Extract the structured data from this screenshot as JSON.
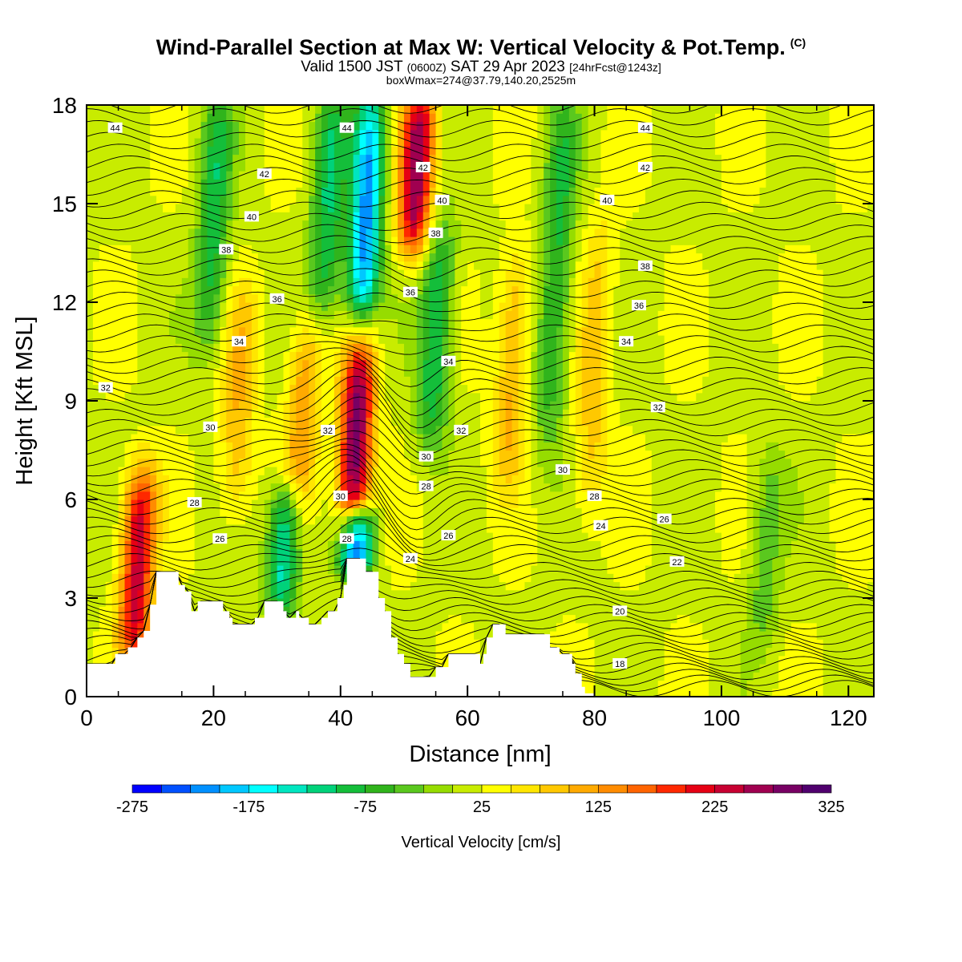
{
  "header": {
    "title": "Wind-Parallel Section at Max W: Vertical Velocity & Pot.Temp.",
    "title_mark": "(C)",
    "subtitle_prefix": "Valid 1500 JST",
    "subtitle_utc": "(0600Z)",
    "subtitle_date": "SAT 29 Apr 2023",
    "subtitle_fcst": "[24hrFcst@1243z]",
    "subtitle2": "boxWmax=274@37.79,140.20,2525m"
  },
  "chart_data": {
    "type": "heatmap",
    "xlabel": "Distance [nm]",
    "ylabel": "Height [Kft MSL]",
    "xlim": [
      0,
      124
    ],
    "ylim": [
      0,
      18
    ],
    "x_ticks": [
      0,
      20,
      40,
      60,
      80,
      100,
      120
    ],
    "y_ticks": [
      0,
      3,
      6,
      9,
      12,
      15,
      18
    ],
    "colorbar": {
      "label": "Vertical Velocity [cm/s]",
      "levels": [
        -275,
        -250,
        -225,
        -200,
        -175,
        -150,
        -125,
        -100,
        -75,
        -50,
        -25,
        0,
        25,
        50,
        75,
        100,
        125,
        150,
        175,
        200,
        225,
        250,
        275,
        300,
        325
      ],
      "tick_labels": [
        "-275",
        "-175",
        "-75",
        "25",
        "125",
        "225",
        "325"
      ],
      "colors": [
        "#0000ff",
        "#0050ff",
        "#0090ff",
        "#00c8ff",
        "#00ffff",
        "#00e6c0",
        "#00d27a",
        "#14be3a",
        "#30b41c",
        "#5ac81e",
        "#96dc00",
        "#c8ec00",
        "#ffff00",
        "#ffe600",
        "#ffc800",
        "#ffaa00",
        "#ff8c00",
        "#ff6400",
        "#ff2800",
        "#e60014",
        "#c80032",
        "#a00050",
        "#780064",
        "#50006e"
      ]
    },
    "updrafts": [
      {
        "x": 8,
        "base": 1.5,
        "top": 6.5,
        "w": 220
      },
      {
        "x": 42.5,
        "base": 5.5,
        "top": 11,
        "w": 274
      },
      {
        "x": 52,
        "base": 14,
        "top": 18,
        "w": 250
      },
      {
        "x": 34,
        "base": 6,
        "top": 11,
        "w": 100
      },
      {
        "x": 67,
        "base": 7,
        "top": 13,
        "w": 90
      },
      {
        "x": 24,
        "base": 6,
        "top": 12,
        "w": 80
      },
      {
        "x": 80,
        "base": 6,
        "top": 14,
        "w": 70
      }
    ],
    "downdrafts": [
      {
        "x": 44,
        "base": 11,
        "top": 18,
        "w": -230
      },
      {
        "x": 42.5,
        "base": 4.2,
        "top": 5.2,
        "w": -270
      },
      {
        "x": 31,
        "base": 3,
        "top": 6,
        "w": -160
      },
      {
        "x": 38,
        "base": 12,
        "top": 18,
        "w": -120
      },
      {
        "x": 55,
        "base": 8,
        "top": 14,
        "w": -120
      },
      {
        "x": 20,
        "base": 11,
        "top": 18,
        "w": -110
      },
      {
        "x": 74,
        "base": 8,
        "top": 18,
        "w": -100
      },
      {
        "x": 107,
        "base": 2,
        "top": 7,
        "w": -60
      }
    ],
    "terrain": [
      [
        0,
        1
      ],
      [
        4.5,
        1
      ],
      [
        4.5,
        1.3
      ],
      [
        6.5,
        1.3
      ],
      [
        6.5,
        1.5
      ],
      [
        8,
        1.5
      ],
      [
        8,
        1.8
      ],
      [
        9,
        1.8
      ],
      [
        9,
        2
      ],
      [
        10,
        2
      ],
      [
        10,
        2.8
      ],
      [
        11,
        2.8
      ],
      [
        11,
        3.8
      ],
      [
        14.5,
        3.8
      ],
      [
        14.5,
        3.4
      ],
      [
        15.5,
        3.4
      ],
      [
        15.5,
        3.2
      ],
      [
        16.5,
        3.2
      ],
      [
        16.5,
        2.6
      ],
      [
        17.5,
        2.6
      ],
      [
        17.5,
        2.9
      ],
      [
        21.5,
        2.9
      ],
      [
        21.5,
        2.6
      ],
      [
        22.5,
        2.6
      ],
      [
        22.5,
        2.4
      ],
      [
        23,
        2.4
      ],
      [
        23,
        2.2
      ],
      [
        26.5,
        2.2
      ],
      [
        26.5,
        2.4
      ],
      [
        28,
        2.4
      ],
      [
        28,
        2.9
      ],
      [
        31,
        2.9
      ],
      [
        31,
        2.6
      ],
      [
        31.5,
        2.6
      ],
      [
        31.5,
        2.4
      ],
      [
        33,
        2.4
      ],
      [
        33,
        2.6
      ],
      [
        33.5,
        2.6
      ],
      [
        33.5,
        2.4
      ],
      [
        35,
        2.4
      ],
      [
        35,
        2.2
      ],
      [
        37,
        2.2
      ],
      [
        37,
        2.4
      ],
      [
        38,
        2.4
      ],
      [
        38,
        2.6
      ],
      [
        39.5,
        2.6
      ],
      [
        39.5,
        3
      ],
      [
        40.5,
        3
      ],
      [
        40.5,
        3.4
      ],
      [
        41,
        3.4
      ],
      [
        41,
        4.2
      ],
      [
        44,
        4.2
      ],
      [
        44,
        3.8
      ],
      [
        46,
        3.8
      ],
      [
        46,
        3
      ],
      [
        47,
        3
      ],
      [
        47,
        2.6
      ],
      [
        48,
        2.6
      ],
      [
        48,
        1.8
      ],
      [
        49,
        1.8
      ],
      [
        49,
        1.3
      ],
      [
        50,
        1.3
      ],
      [
        50,
        1
      ],
      [
        51,
        1
      ],
      [
        51,
        0.6
      ],
      [
        55,
        0.6
      ],
      [
        55,
        0.9
      ],
      [
        57,
        0.9
      ],
      [
        57,
        1.3
      ],
      [
        62,
        1.3
      ],
      [
        62,
        1
      ],
      [
        62.5,
        1
      ],
      [
        62.5,
        1.3
      ],
      [
        63,
        1.3
      ],
      [
        63,
        1.8
      ],
      [
        64,
        1.8
      ],
      [
        64,
        2.2
      ],
      [
        66,
        2.2
      ],
      [
        66,
        1.9
      ],
      [
        73,
        1.9
      ],
      [
        73,
        1.5
      ],
      [
        74.5,
        1.5
      ],
      [
        74.5,
        1.3
      ],
      [
        76.5,
        1.3
      ],
      [
        76.5,
        1
      ],
      [
        77,
        1
      ],
      [
        77,
        0.7
      ],
      [
        78,
        0.7
      ],
      [
        78,
        0.3
      ],
      [
        78.5,
        0.3
      ],
      [
        78.5,
        0.1
      ],
      [
        80,
        0.1
      ],
      [
        80,
        0
      ]
    ],
    "isentropes": {
      "units": "K (potential temperature, label = theta - 273)",
      "labels": [
        {
          "text": "44",
          "x": 4.5,
          "y": 17.3
        },
        {
          "text": "44",
          "x": 41,
          "y": 17.3
        },
        {
          "text": "44",
          "x": 88,
          "y": 17.3
        },
        {
          "text": "42",
          "x": 28,
          "y": 15.9
        },
        {
          "text": "42",
          "x": 53,
          "y": 16.1
        },
        {
          "text": "42",
          "x": 88,
          "y": 16.1
        },
        {
          "text": "40",
          "x": 26,
          "y": 14.6
        },
        {
          "text": "40",
          "x": 56,
          "y": 15.1
        },
        {
          "text": "40",
          "x": 82,
          "y": 15.1
        },
        {
          "text": "38",
          "x": 22,
          "y": 13.6
        },
        {
          "text": "38",
          "x": 55,
          "y": 14.1
        },
        {
          "text": "38",
          "x": 88,
          "y": 13.1
        },
        {
          "text": "36",
          "x": 30,
          "y": 12.1
        },
        {
          "text": "36",
          "x": 51,
          "y": 12.3
        },
        {
          "text": "36",
          "x": 87,
          "y": 11.9
        },
        {
          "text": "34",
          "x": 24,
          "y": 10.8
        },
        {
          "text": "34",
          "x": 57,
          "y": 10.2
        },
        {
          "text": "34",
          "x": 85,
          "y": 10.8
        },
        {
          "text": "32",
          "x": 3,
          "y": 9.4
        },
        {
          "text": "32",
          "x": 38,
          "y": 8.1
        },
        {
          "text": "32",
          "x": 59,
          "y": 8.1
        },
        {
          "text": "32",
          "x": 90,
          "y": 8.8
        },
        {
          "text": "30",
          "x": 19.5,
          "y": 8.2
        },
        {
          "text": "30",
          "x": 53.5,
          "y": 7.3
        },
        {
          "text": "30",
          "x": 75,
          "y": 6.9
        },
        {
          "text": "30",
          "x": 40,
          "y": 6.1
        },
        {
          "text": "28",
          "x": 17,
          "y": 5.9
        },
        {
          "text": "28",
          "x": 41,
          "y": 4.8
        },
        {
          "text": "28",
          "x": 53.5,
          "y": 6.4
        },
        {
          "text": "28",
          "x": 80,
          "y": 6.1
        },
        {
          "text": "26",
          "x": 21,
          "y": 4.8
        },
        {
          "text": "26",
          "x": 57,
          "y": 4.9
        },
        {
          "text": "26",
          "x": 91,
          "y": 5.4
        },
        {
          "text": "24",
          "x": 51,
          "y": 4.2
        },
        {
          "text": "24",
          "x": 81,
          "y": 5.2
        },
        {
          "text": "22",
          "x": 93,
          "y": 4.1
        },
        {
          "text": "20",
          "x": 84,
          "y": 2.6
        },
        {
          "text": "18",
          "x": 84,
          "y": 1
        }
      ]
    }
  }
}
